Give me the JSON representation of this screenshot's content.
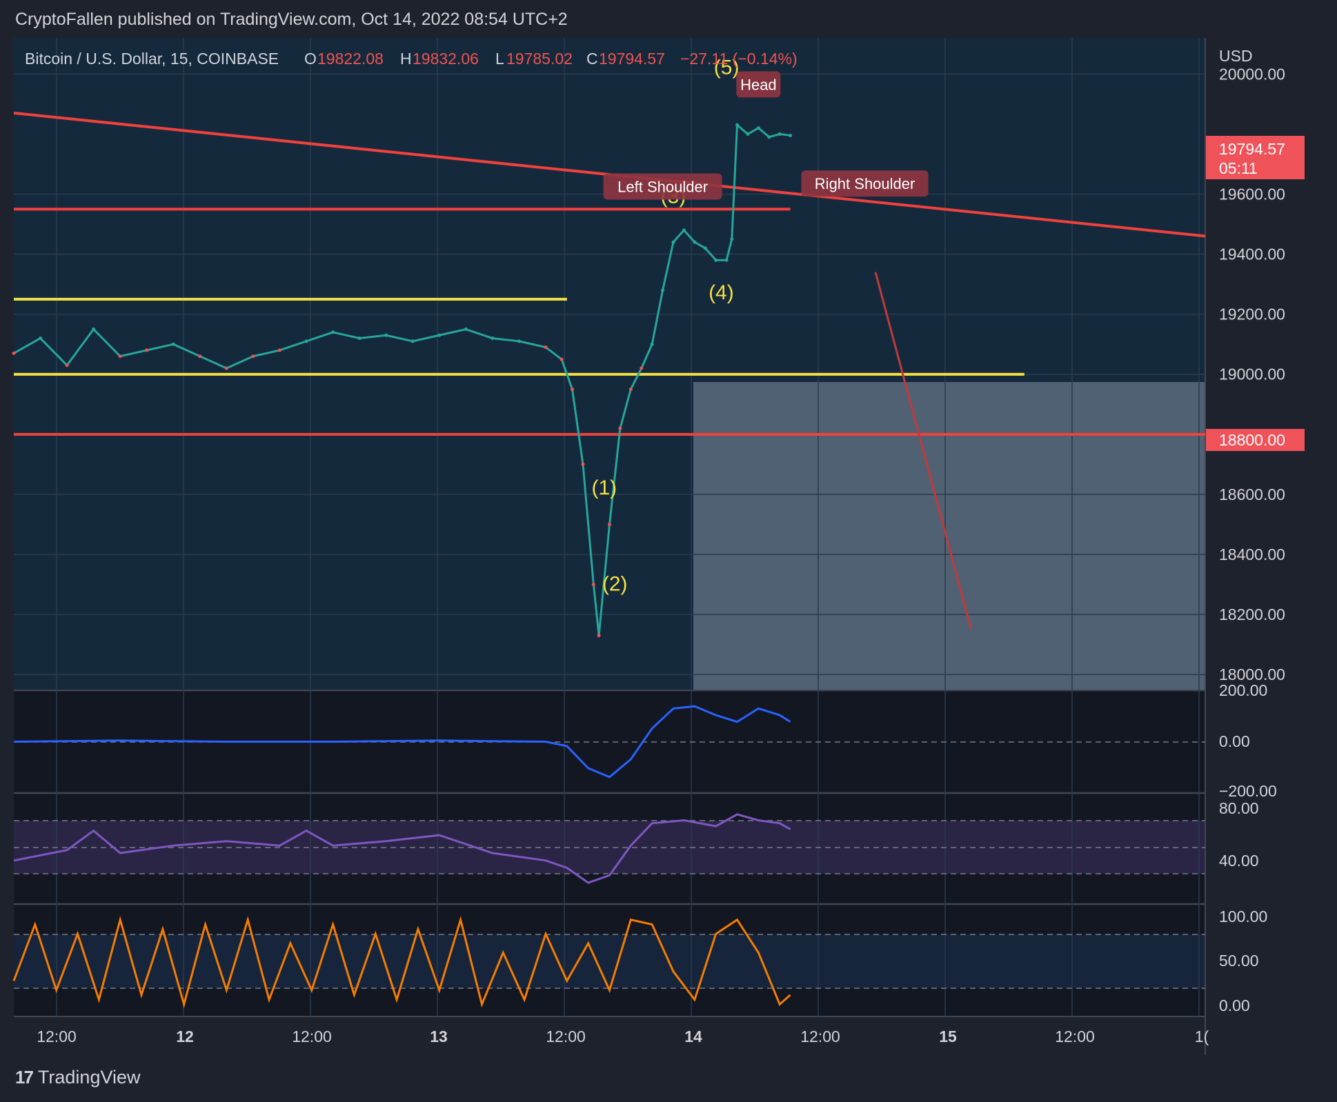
{
  "header": {
    "published": "CryptoFallen published on TradingView.com, Oct 14, 2022 08:54 UTC+2"
  },
  "footer": {
    "brand": "TradingView",
    "logo_icon": "tradingview-logo-icon"
  },
  "colors": {
    "panel_bg": "#131722",
    "main_bg": "#162a40",
    "up": "#26a69a",
    "down": "#ef5350",
    "yellow": "#f5e142",
    "red_line": "#f0413d",
    "target_box": "#5b6b7c"
  },
  "legend": {
    "symbol": "Bitcoin / U.S. Dollar, 15, COINBASE",
    "o_label": "O",
    "o_value": "19822.08",
    "h_label": "H",
    "h_value": "19832.06",
    "l_label": "L",
    "l_value": "19785.02",
    "c_label": "C",
    "c_value": "19794.57",
    "change": "−27.11 (−0.14%)"
  },
  "chart_data": {
    "type": "line",
    "title": "Bitcoin / U.S. Dollar, 15, COINBASE",
    "currency": "USD",
    "price_axis": {
      "ticks": [
        "20000.00",
        "19600.00",
        "19400.00",
        "19200.00",
        "19000.00",
        "18600.00",
        "18400.00",
        "18200.00",
        "18000.00"
      ],
      "ylim": [
        17950,
        20120
      ]
    },
    "time_axis": {
      "labels": [
        "12:00",
        "12",
        "12:00",
        "13",
        "12:00",
        "14",
        "12:00",
        "15",
        "12:00",
        "1("
      ]
    },
    "last_price": {
      "value": "19794.57",
      "countdown": "05:11"
    },
    "level_label": "18800.00",
    "price_series": {
      "name": "BTCUSD",
      "points": [
        [
          0,
          19070
        ],
        [
          5,
          19120
        ],
        [
          10,
          19030
        ],
        [
          15,
          19150
        ],
        [
          20,
          19060
        ],
        [
          25,
          19080
        ],
        [
          30,
          19100
        ],
        [
          35,
          19060
        ],
        [
          40,
          19020
        ],
        [
          45,
          19060
        ],
        [
          50,
          19080
        ],
        [
          55,
          19110
        ],
        [
          60,
          19140
        ],
        [
          65,
          19120
        ],
        [
          70,
          19130
        ],
        [
          75,
          19110
        ],
        [
          80,
          19130
        ],
        [
          85,
          19150
        ],
        [
          90,
          19120
        ],
        [
          95,
          19110
        ],
        [
          100,
          19090
        ],
        [
          103,
          19050
        ],
        [
          105,
          18950
        ],
        [
          107,
          18700
        ],
        [
          109,
          18300
        ],
        [
          110,
          18130
        ],
        [
          112,
          18500
        ],
        [
          114,
          18820
        ],
        [
          116,
          18950
        ],
        [
          118,
          19020
        ],
        [
          120,
          19100
        ],
        [
          122,
          19280
        ],
        [
          124,
          19440
        ],
        [
          126,
          19480
        ],
        [
          128,
          19440
        ],
        [
          130,
          19420
        ],
        [
          132,
          19380
        ],
        [
          134,
          19380
        ],
        [
          135,
          19450
        ],
        [
          136,
          19830
        ],
        [
          138,
          19800
        ],
        [
          140,
          19820
        ],
        [
          142,
          19790
        ],
        [
          144,
          19800
        ],
        [
          146,
          19795
        ]
      ]
    },
    "levels": [
      {
        "name": "resistance-1",
        "value": 19550,
        "from": 0,
        "to": 146
      },
      {
        "name": "yellow-1",
        "value": 19250,
        "from": 0,
        "to": 104
      },
      {
        "name": "yellow-2",
        "value": 19000,
        "from": 0,
        "to": 190
      },
      {
        "name": "red-1",
        "value": 18800,
        "from": 0,
        "to": 224
      }
    ],
    "trendlines": [
      {
        "name": "downtrend",
        "from": [
          0,
          19870
        ],
        "to": [
          224,
          19460
        ]
      }
    ],
    "wave_labels": [
      {
        "label": "(1)",
        "x": 111,
        "y": 18600
      },
      {
        "label": "(2)",
        "x": 113,
        "y": 18280
      },
      {
        "label": "(3)",
        "x": 124,
        "y": 19570
      },
      {
        "label": "(4)",
        "x": 133,
        "y": 19250
      },
      {
        "label": "(5)",
        "x": 134,
        "y": 20000
      }
    ],
    "pattern_labels": [
      {
        "label": "Left Shoulder",
        "x": 122,
        "y": 19600
      },
      {
        "label": "Head",
        "x": 140,
        "y": 19940
      },
      {
        "label": "Right Shoulder",
        "x": 160,
        "y": 19610
      }
    ],
    "projection": {
      "from": [
        162,
        19340
      ],
      "to": [
        180,
        18150
      ]
    },
    "macd": {
      "ticks": [
        "200.00",
        "0.00",
        "−200.00"
      ],
      "ylim": [
        -220,
        220
      ],
      "values": [
        [
          0,
          0
        ],
        [
          20,
          5
        ],
        [
          40,
          0
        ],
        [
          60,
          0
        ],
        [
          80,
          5
        ],
        [
          100,
          0
        ],
        [
          104,
          -20
        ],
        [
          108,
          -120
        ],
        [
          112,
          -160
        ],
        [
          116,
          -80
        ],
        [
          120,
          60
        ],
        [
          124,
          150
        ],
        [
          128,
          160
        ],
        [
          132,
          120
        ],
        [
          136,
          90
        ],
        [
          140,
          150
        ],
        [
          144,
          120
        ],
        [
          146,
          90
        ]
      ]
    },
    "rsi": {
      "ticks": [
        "80.00",
        "40.00"
      ],
      "ylim": [
        18,
        88
      ],
      "values": [
        [
          0,
          45
        ],
        [
          10,
          52
        ],
        [
          15,
          65
        ],
        [
          20,
          50
        ],
        [
          30,
          55
        ],
        [
          40,
          58
        ],
        [
          50,
          55
        ],
        [
          55,
          65
        ],
        [
          60,
          55
        ],
        [
          70,
          58
        ],
        [
          80,
          62
        ],
        [
          90,
          50
        ],
        [
          100,
          45
        ],
        [
          104,
          40
        ],
        [
          108,
          30
        ],
        [
          112,
          35
        ],
        [
          116,
          55
        ],
        [
          120,
          70
        ],
        [
          126,
          72
        ],
        [
          132,
          68
        ],
        [
          136,
          76
        ],
        [
          140,
          72
        ],
        [
          144,
          70
        ],
        [
          146,
          66
        ]
      ]
    },
    "stoch": {
      "ticks": [
        "100.00",
        "50.00",
        "0.00"
      ],
      "ylim": [
        -5,
        108
      ],
      "values": [
        [
          0,
          30
        ],
        [
          4,
          90
        ],
        [
          8,
          20
        ],
        [
          12,
          80
        ],
        [
          16,
          10
        ],
        [
          20,
          95
        ],
        [
          24,
          15
        ],
        [
          28,
          85
        ],
        [
          32,
          5
        ],
        [
          36,
          90
        ],
        [
          40,
          20
        ],
        [
          44,
          95
        ],
        [
          48,
          10
        ],
        [
          52,
          70
        ],
        [
          56,
          20
        ],
        [
          60,
          90
        ],
        [
          64,
          15
        ],
        [
          68,
          80
        ],
        [
          72,
          10
        ],
        [
          76,
          85
        ],
        [
          80,
          20
        ],
        [
          84,
          95
        ],
        [
          88,
          5
        ],
        [
          92,
          60
        ],
        [
          96,
          10
        ],
        [
          100,
          80
        ],
        [
          104,
          30
        ],
        [
          108,
          70
        ],
        [
          112,
          20
        ],
        [
          116,
          95
        ],
        [
          120,
          90
        ],
        [
          124,
          40
        ],
        [
          128,
          10
        ],
        [
          132,
          80
        ],
        [
          136,
          95
        ],
        [
          140,
          60
        ],
        [
          144,
          5
        ],
        [
          146,
          15
        ]
      ]
    }
  }
}
